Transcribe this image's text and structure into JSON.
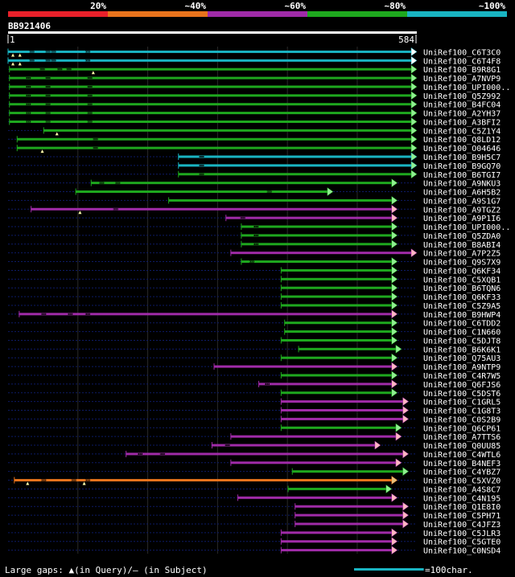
{
  "chart_data": {
    "type": "alignment-overview",
    "title": "BB921406",
    "query_start": "1",
    "query_end": "584",
    "query_length": 584,
    "identity_legend": [
      {
        "label": "20%",
        "color": "#e8202a"
      },
      {
        "label": "~40%",
        "color": "#e8731c"
      },
      {
        "label": "~60%",
        "color": "#a02ba8"
      },
      {
        "label": "~80%",
        "color": "#1ea81e"
      },
      {
        "label": "~100%",
        "color": "#19b4c2"
      }
    ],
    "footer_left": "Large gaps: ▲(in Query)/– (in Subject)",
    "footer_right": "=100char.",
    "scale_char": 100,
    "hits": [
      {
        "name": "UniRef100_C6T3C0",
        "start": 1,
        "end": 584,
        "color": "#19b4c2",
        "arrow": "#ffffff",
        "tri": [
          8,
          18
        ],
        "dots": [
          35,
          58,
          66,
          115
        ]
      },
      {
        "name": "UniRef100_C6T4F8",
        "start": 1,
        "end": 584,
        "color": "#19b4c2",
        "arrow": "#ffffff",
        "tri": [
          8,
          18
        ],
        "dots": [
          35,
          58,
          66,
          115
        ]
      },
      {
        "name": "UniRef100_B9R8G1",
        "start": 3,
        "end": 584,
        "color": "#1ea81e",
        "arrow": "#90ee90",
        "tri": [
          123
        ],
        "dots": [
          50,
          75,
          88
        ]
      },
      {
        "name": "UniRef100_A7NVP9",
        "start": 3,
        "end": 584,
        "color": "#1ea81e",
        "arrow": "#90ee90",
        "tri": [],
        "dots": [
          30,
          58,
          118
        ]
      },
      {
        "name": "UniRef100_UPI000..",
        "start": 3,
        "end": 584,
        "color": "#1ea81e",
        "arrow": "#90ee90",
        "tri": [],
        "dots": [
          30,
          58,
          118
        ]
      },
      {
        "name": "UniRef100_Q5Z992",
        "start": 3,
        "end": 584,
        "color": "#1ea81e",
        "arrow": "#90ee90",
        "tri": [],
        "dots": [
          30,
          58,
          118
        ]
      },
      {
        "name": "UniRef100_B4FC04",
        "start": 3,
        "end": 584,
        "color": "#1ea81e",
        "arrow": "#90ee90",
        "tri": [],
        "dots": [
          30,
          58,
          118
        ]
      },
      {
        "name": "UniRef100_A2YH37",
        "start": 3,
        "end": 584,
        "color": "#1ea81e",
        "arrow": "#90ee90",
        "tri": [],
        "dots": [
          30,
          58,
          118
        ]
      },
      {
        "name": "UniRef100_A3BFI2",
        "start": 3,
        "end": 584,
        "color": "#1ea81e",
        "arrow": "#90ee90",
        "tri": [],
        "dots": [
          30,
          58,
          118
        ]
      },
      {
        "name": "UniRef100_C5Z1Y4",
        "start": 52,
        "end": 584,
        "color": "#1ea81e",
        "arrow": "#90ee90",
        "tri": [
          71
        ],
        "dots": []
      },
      {
        "name": "UniRef100_Q8LD12",
        "start": 14,
        "end": 584,
        "color": "#1ea81e",
        "arrow": "#90ee90",
        "tri": [],
        "dots": [
          126
        ]
      },
      {
        "name": "UniRef100_O04646",
        "start": 14,
        "end": 584,
        "color": "#1ea81e",
        "arrow": "#90ee90",
        "tri": [
          50
        ],
        "dots": [
          126
        ]
      },
      {
        "name": "UniRef100_B9H5C7",
        "start": 245,
        "end": 584,
        "color": "#19b4c2",
        "arrow": "#90ee90",
        "tri": [],
        "dots": [
          278
        ]
      },
      {
        "name": "UniRef100_B9GQ70",
        "start": 245,
        "end": 584,
        "color": "#19b4c2",
        "arrow": "#90ee90",
        "tri": [],
        "dots": [
          278
        ]
      },
      {
        "name": "UniRef100_B6TGI7",
        "start": 245,
        "end": 584,
        "color": "#1ea81e",
        "arrow": "#90ee90",
        "tri": [],
        "dots": [
          278
        ]
      },
      {
        "name": "UniRef100_A9NKU3",
        "start": 120,
        "end": 556,
        "color": "#1ea81e",
        "arrow": "#90ee90",
        "tri": [],
        "dots": [
          135,
          158
        ]
      },
      {
        "name": "UniRef100_A6H5B2",
        "start": 98,
        "end": 464,
        "color": "#1ea81e",
        "arrow": "#90ee90",
        "tri": [],
        "dots": [
          375
        ]
      },
      {
        "name": "UniRef100_A9S1G7",
        "start": 231,
        "end": 556,
        "color": "#1ea81e",
        "arrow": "#90ee90",
        "tri": [],
        "dots": []
      },
      {
        "name": "UniRef100_A9TGZ2",
        "start": 34,
        "end": 556,
        "color": "#a02ba8",
        "arrow": "#ffb6c1",
        "tri": [
          104
        ],
        "dots": [
          155
        ]
      },
      {
        "name": "UniRef100_A9P1I6",
        "start": 313,
        "end": 556,
        "color": "#a02ba8",
        "arrow": "#ffb6c1",
        "tri": [],
        "dots": [
          337
        ]
      },
      {
        "name": "UniRef100_UPI000..",
        "start": 335,
        "end": 556,
        "color": "#1ea81e",
        "arrow": "#90ee90",
        "tri": [],
        "dots": [
          356
        ]
      },
      {
        "name": "UniRef100_Q5ZDA0",
        "start": 335,
        "end": 556,
        "color": "#1ea81e",
        "arrow": "#90ee90",
        "tri": [],
        "dots": [
          356
        ]
      },
      {
        "name": "UniRef100_B8ABI4",
        "start": 335,
        "end": 556,
        "color": "#1ea81e",
        "arrow": "#90ee90",
        "tri": [],
        "dots": [
          356
        ]
      },
      {
        "name": "UniRef100_A7P2Z5",
        "start": 320,
        "end": 584,
        "color": "#a02ba8",
        "arrow": "#ffb6c1",
        "tri": [],
        "dots": []
      },
      {
        "name": "UniRef100_Q9S7X9",
        "start": 335,
        "end": 556,
        "color": "#1ea81e",
        "arrow": "#90ee90",
        "tri": [],
        "dots": [
          350
        ]
      },
      {
        "name": "UniRef100_Q6KF34",
        "start": 392,
        "end": 556,
        "color": "#1ea81e",
        "arrow": "#90ee90",
        "tri": [],
        "dots": []
      },
      {
        "name": "UniRef100_C5XQB1",
        "start": 392,
        "end": 556,
        "color": "#1ea81e",
        "arrow": "#90ee90",
        "tri": [],
        "dots": []
      },
      {
        "name": "UniRef100_B6TQN6",
        "start": 392,
        "end": 556,
        "color": "#1ea81e",
        "arrow": "#90ee90",
        "tri": [],
        "dots": []
      },
      {
        "name": "UniRef100_Q6KF33",
        "start": 392,
        "end": 556,
        "color": "#1ea81e",
        "arrow": "#90ee90",
        "tri": [],
        "dots": []
      },
      {
        "name": "UniRef100_C5Z9A5",
        "start": 392,
        "end": 556,
        "color": "#1ea81e",
        "arrow": "#90ee90",
        "tri": [],
        "dots": []
      },
      {
        "name": "UniRef100_B9HWP4",
        "start": 17,
        "end": 556,
        "color": "#a02ba8",
        "arrow": "#ffb6c1",
        "tri": [],
        "dots": [
          52,
          90,
          115
        ]
      },
      {
        "name": "UniRef100_C6TDD2",
        "start": 397,
        "end": 556,
        "color": "#1ea81e",
        "arrow": "#90ee90",
        "tri": [],
        "dots": []
      },
      {
        "name": "UniRef100_C1N660",
        "start": 397,
        "end": 556,
        "color": "#1ea81e",
        "arrow": "#90ee90",
        "tri": [],
        "dots": []
      },
      {
        "name": "UniRef100_C5DJT8",
        "start": 392,
        "end": 556,
        "color": "#1ea81e",
        "arrow": "#90ee90",
        "tri": [],
        "dots": []
      },
      {
        "name": "UniRef100_B6K6K1",
        "start": 417,
        "end": 562,
        "color": "#1ea81e",
        "arrow": "#90ee90",
        "tri": [],
        "dots": []
      },
      {
        "name": "UniRef100_Q75AU3",
        "start": 392,
        "end": 556,
        "color": "#1ea81e",
        "arrow": "#90ee90",
        "tri": [],
        "dots": []
      },
      {
        "name": "UniRef100_A9NTP9",
        "start": 296,
        "end": 556,
        "color": "#a02ba8",
        "arrow": "#ffb6c1",
        "tri": [],
        "dots": []
      },
      {
        "name": "UniRef100_C4R7W5",
        "start": 392,
        "end": 556,
        "color": "#1ea81e",
        "arrow": "#90ee90",
        "tri": [],
        "dots": []
      },
      {
        "name": "UniRef100_Q6FJS6",
        "start": 360,
        "end": 556,
        "color": "#a02ba8",
        "arrow": "#ffb6c1",
        "tri": [],
        "dots": [
          372
        ]
      },
      {
        "name": "UniRef100_C5DST6",
        "start": 392,
        "end": 556,
        "color": "#1ea81e",
        "arrow": "#90ee90",
        "tri": [],
        "dots": []
      },
      {
        "name": "UniRef100_C1GRL5",
        "start": 392,
        "end": 572,
        "color": "#a02ba8",
        "arrow": "#ffb6c1",
        "tri": [],
        "dots": []
      },
      {
        "name": "UniRef100_C1G8T3",
        "start": 392,
        "end": 572,
        "color": "#a02ba8",
        "arrow": "#ffb6c1",
        "tri": [],
        "dots": []
      },
      {
        "name": "UniRef100_C0S2B9",
        "start": 392,
        "end": 572,
        "color": "#a02ba8",
        "arrow": "#ffb6c1",
        "tri": [],
        "dots": []
      },
      {
        "name": "UniRef100_Q6CP61",
        "start": 392,
        "end": 562,
        "color": "#1ea81e",
        "arrow": "#90ee90",
        "tri": [],
        "dots": []
      },
      {
        "name": "UniRef100_A7TTS6",
        "start": 320,
        "end": 562,
        "color": "#a02ba8",
        "arrow": "#ffb6c1",
        "tri": [],
        "dots": []
      },
      {
        "name": "UniRef100_Q0UU85",
        "start": 293,
        "end": 532,
        "color": "#a02ba8",
        "arrow": "#ffb6c1",
        "tri": [],
        "dots": [
          315
        ]
      },
      {
        "name": "UniRef100_C4WTL6",
        "start": 170,
        "end": 572,
        "color": "#a02ba8",
        "arrow": "#ffb6c1",
        "tri": [],
        "dots": [
          190,
          222
        ]
      },
      {
        "name": "UniRef100_B4NEF3",
        "start": 320,
        "end": 562,
        "color": "#a02ba8",
        "arrow": "#ffb6c1",
        "tri": [],
        "dots": []
      },
      {
        "name": "UniRef100_C4YBZ7",
        "start": 408,
        "end": 572,
        "color": "#1ea81e",
        "arrow": "#90ee90",
        "tri": [],
        "dots": []
      },
      {
        "name": "UniRef100_C5XVZ0",
        "start": 10,
        "end": 556,
        "color": "#e8731c",
        "arrow": "#e8c27a",
        "tri": [
          29,
          110
        ],
        "dots": [
          52,
          95,
          115
        ]
      },
      {
        "name": "UniRef100_A4S8C7",
        "start": 402,
        "end": 548,
        "color": "#1ea81e",
        "arrow": "#90ee90",
        "tri": [],
        "dots": []
      },
      {
        "name": "UniRef100_C4N195",
        "start": 330,
        "end": 556,
        "color": "#a02ba8",
        "arrow": "#ffb6c1",
        "tri": [],
        "dots": []
      },
      {
        "name": "UniRef100_Q1E8I0",
        "start": 412,
        "end": 572,
        "color": "#a02ba8",
        "arrow": "#ffb6c1",
        "tri": [],
        "dots": []
      },
      {
        "name": "UniRef100_C5PH71",
        "start": 412,
        "end": 572,
        "color": "#a02ba8",
        "arrow": "#ffb6c1",
        "tri": [],
        "dots": []
      },
      {
        "name": "UniRef100_C4JFZ3",
        "start": 412,
        "end": 572,
        "color": "#a02ba8",
        "arrow": "#ffb6c1",
        "tri": [],
        "dots": []
      },
      {
        "name": "UniRef100_C5JLR3",
        "start": 392,
        "end": 556,
        "color": "#a02ba8",
        "arrow": "#ffb6c1",
        "tri": [],
        "dots": []
      },
      {
        "name": "UniRef100_C5GTE0",
        "start": 392,
        "end": 556,
        "color": "#a02ba8",
        "arrow": "#ffb6c1",
        "tri": [],
        "dots": []
      },
      {
        "name": "UniRef100_C0NSD4",
        "start": 392,
        "end": 556,
        "color": "#a02ba8",
        "arrow": "#ffb6c1",
        "tri": [],
        "dots": []
      }
    ]
  }
}
